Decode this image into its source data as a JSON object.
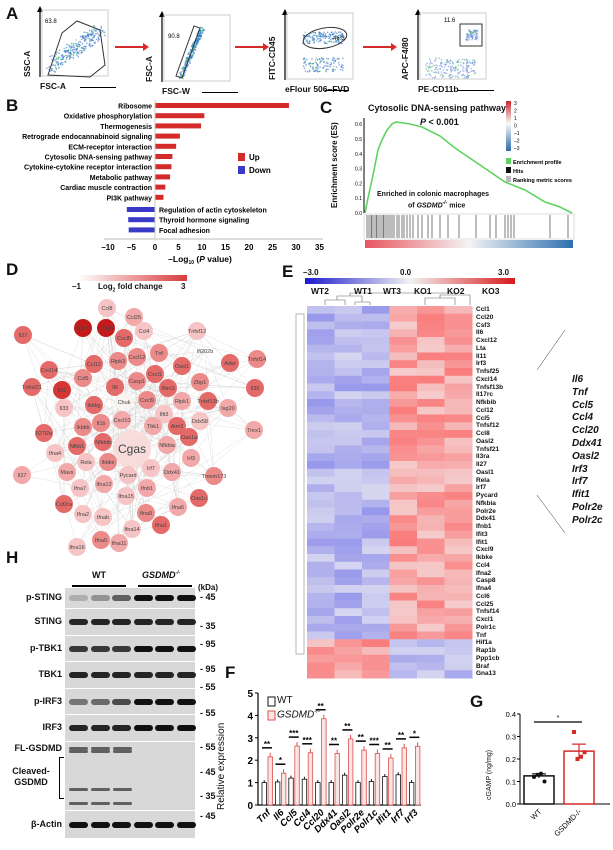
{
  "panels": {
    "A": "A",
    "B": "B",
    "C": "C",
    "D": "D",
    "E": "E",
    "F": "F",
    "G": "G",
    "H": "H"
  },
  "panel_a": {
    "plots": [
      {
        "x_label": "FSC-A",
        "y_label": "SSC-A",
        "gate_pct": "63.8"
      },
      {
        "x_label": "FSC-W",
        "y_label": "FSC-A",
        "gate_pct": "90.8"
      },
      {
        "x_label": "eFlour 506–FVD",
        "y_label": "FITC-CD45",
        "gate_pct": "46.3"
      },
      {
        "x_label": "PE-CD11b",
        "y_label": "APC-F4/80",
        "gate_pct": "11.6"
      }
    ]
  },
  "chart_data": [
    {
      "panel": "B",
      "type": "bar",
      "orientation": "horizontal",
      "categories": [
        "Ribosome",
        "Oxidative phosphorylation",
        "Thermogenesis",
        "Retrograde endocannabinoid signaling",
        "ECM-receptor interaction",
        "Cytosolic DNA-sensing pathway",
        "Cytokine-cytokine receptor interaction",
        "Metabolic pathway",
        "Cardiac muscle contraction",
        "PI3K pathway",
        "Regulation of actin cytoskeleton",
        "Thyroid hormone signaling",
        "Focal adhesion"
      ],
      "values": [
        28.5,
        10.5,
        9.8,
        5.3,
        4.5,
        3.7,
        3.5,
        3.2,
        2.2,
        1.8,
        -6.0,
        -5.7,
        -5.6
      ],
      "direction": [
        "Up",
        "Up",
        "Up",
        "Up",
        "Up",
        "Up",
        "Up",
        "Up",
        "Up",
        "Up",
        "Down",
        "Down",
        "Down"
      ],
      "xlabel_parts": [
        "–Log",
        "10",
        " (",
        "P",
        " value)"
      ],
      "xlim": [
        -10,
        35
      ],
      "xticks": [
        "–10",
        "–5",
        "0",
        "5",
        "10",
        "15",
        "20",
        "25",
        "30",
        "35"
      ],
      "legend": [
        {
          "name": "Up",
          "color": "#d42a2a"
        },
        {
          "name": "Down",
          "color": "#3a3ac8"
        }
      ],
      "legend_position": "right"
    },
    {
      "panel": "C",
      "type": "line",
      "title": "Cytosolic DNA-sensing pathway",
      "p_value_label": "P",
      "p_value_text": " < 0.001",
      "ylabel": "Enrichment score (ES)",
      "yticks": [
        "0.0",
        "0.1",
        "0.2",
        "0.3",
        "0.4",
        "0.5",
        "0.6"
      ],
      "ylim": [
        0,
        0.6
      ],
      "peak_es": 0.61,
      "colorbar_ticks": [
        "3",
        "2",
        "1",
        "0",
        "–1",
        "–2",
        "–3"
      ],
      "legend": [
        {
          "name": "Enrichment profile",
          "color": "#5fd35f"
        },
        {
          "name": "Hits",
          "color": "#111111"
        },
        {
          "name": "Ranking metric scores",
          "color": "#bbbbbb"
        }
      ],
      "annotation_line1": "Enriched in colonic macrophages",
      "annotation_line2_pre": "of ",
      "annotation_line2_gene": "GSDMD",
      "annotation_line2_sup": "-/-",
      "annotation_line2_post": " mice"
    },
    {
      "panel": "F",
      "type": "bar",
      "ylabel": "Relative expression",
      "ylim": [
        0,
        5
      ],
      "yticks": [
        "0",
        "1",
        "2",
        "3",
        "4",
        "5"
      ],
      "categories": [
        "Tnf",
        "Il6",
        "Ccl5",
        "Ccl4",
        "Ccl20",
        "Ddx41",
        "Oasl2",
        "Polr2e",
        "Polr1c",
        "Ifit1",
        "Irf7",
        "Irf3"
      ],
      "series": [
        {
          "name": "WT",
          "values": [
            1.0,
            1.03,
            1.2,
            1.15,
            1.0,
            1.0,
            1.33,
            1.0,
            1.05,
            1.27,
            1.35,
            1.0
          ],
          "color": "#111111"
        },
        {
          "name": "GSDMD-/-",
          "values": [
            2.15,
            1.42,
            2.63,
            2.33,
            3.85,
            2.3,
            2.95,
            2.45,
            2.3,
            2.1,
            2.55,
            2.62
          ],
          "color": "#d9534f"
        }
      ],
      "significance": [
        "**",
        "*",
        "***",
        "***",
        "**",
        "**",
        "**",
        "**",
        "***",
        "**",
        "**",
        "*"
      ],
      "legend_labels": {
        "wt": "WT",
        "ko": "GSDMD",
        "ko_sup": "-/-"
      },
      "legend_position": "top-left"
    },
    {
      "panel": "G",
      "type": "bar",
      "ylabel": "cGAMP (ng/mg)",
      "ylim": [
        0,
        0.4
      ],
      "yticks": [
        "0.0",
        "0.1",
        "0.2",
        "0.3",
        "0.4"
      ],
      "categories": [
        "WT",
        "GSDMD-/-"
      ],
      "values": [
        0.125,
        0.235
      ],
      "points": [
        [
          0.12,
          0.13,
          0.135,
          0.1
        ],
        [
          0.32,
          0.2,
          0.21,
          0.23
        ]
      ],
      "significance": "*",
      "colors": [
        "#111111",
        "#d42a2a"
      ]
    }
  ],
  "panel_d": {
    "legend_min": "–1",
    "legend_max": "3",
    "legend_title": "Log",
    "legend_sub": "2",
    "legend_title2": " fold change",
    "nodes": [
      "Ccl8",
      "Ccl25",
      "Ccl1",
      "Ccl20",
      "Cxcl5",
      "Ccl4",
      "Tnfsf12",
      "Il27",
      "Tnf",
      "Ifi202b",
      "Tnfsf14",
      "Ccl12",
      "Ripk3",
      "Cxcl12",
      "Oasl1",
      "Adar",
      "Cxcl14",
      "Cxcl1",
      "Ccl5",
      "Casp1",
      "Zbp1",
      "Tnfrsf21",
      "Il11",
      "Il6",
      "Ifitm3",
      "Il35",
      "Ikbkg",
      "Chuk",
      "Cxcl9",
      "Ripk1",
      "Tnfsf13b",
      "Isg20",
      "Il33",
      "Ifit3",
      "Il1b",
      "Cxcl10",
      "Tbk1",
      "Aim2",
      "Ddx58",
      "Trex1",
      "Il27l2a",
      "Ikbkb",
      "Nfkbib",
      "Nfkb1",
      "Cgas",
      "Nfkbia",
      "Oas1a",
      "Ifna4",
      "Irf3",
      "Rela",
      "Ikbke",
      "Il27",
      "Mavs",
      "Irf7",
      "Pycard",
      "Ddx41",
      "Tmem173",
      "Ifna7",
      "Ifna12",
      "Ifnb1",
      "Ifna15",
      "Oas1c",
      "Csf2ra",
      "Ifna6",
      "Ifna2",
      "Ifnab",
      "Ifna9",
      "Ifna1",
      "Ifna14",
      "Ifna5",
      "Ifna11",
      "Ifna16"
    ]
  },
  "panel_e": {
    "scale_min": "–3.0",
    "scale_mid": "0.0",
    "scale_max": "3.0",
    "samples": [
      "WT2",
      "WT1",
      "WT3",
      "KO1",
      "KO2",
      "KO3"
    ],
    "genes": [
      "Ccl1",
      "Ccl20",
      "Csf3",
      "Il6",
      "Cxcl12",
      "Lta",
      "Il11",
      "Irf3",
      "Tnfsf25",
      "Cxcl14",
      "Tnfsf13b",
      "Il17rc",
      "Nfkbib",
      "Ccl12",
      "Ccl5",
      "Tnfsf12",
      "Ccl8",
      "Oasl2",
      "Tnfsf21",
      "Il3ra",
      "Il27",
      "Oasl1",
      "Rela",
      "Irf7",
      "Pycard",
      "Nfkbia",
      "Polr2e",
      "Ddx41",
      "Ifnb1",
      "Ifit3",
      "Ifit1",
      "Cxcl9",
      "Ikbke",
      "Ccl4",
      "Ifna2",
      "Casp8",
      "Ifna4",
      "Ccl6",
      "Ccl25",
      "Tnfsf14",
      "Cxcl1",
      "Polr1c",
      "Tnf",
      "Hif1a",
      "Rap1b",
      "Ppp1cb",
      "Braf",
      "Gna13"
    ],
    "highlight": [
      "Il6",
      "Tnf",
      "Ccl5",
      "Ccl4",
      "Ccl20",
      "Ddx41",
      "Oasl2",
      "Irf3",
      "Irf7",
      "Ifit1",
      "Polr2e",
      "Polr2c"
    ]
  },
  "panel_h": {
    "group_wt": "WT",
    "group_ko": "GSDMD",
    "group_ko_sup": "-/-",
    "kda_label": "(kDa)",
    "blots": [
      "p-STING",
      "STING",
      "p-TBK1",
      "TBK1",
      "p-IRF3",
      "IRF3",
      "FL-GSDMD",
      "Cleaved-\nGSDMD",
      "β-Actin"
    ],
    "cleaved_label_line1": "Cleaved-",
    "cleaved_label_line2": "GSDMD",
    "markers": [
      "45",
      "35",
      "95",
      "95",
      "55",
      "55",
      "55",
      "45",
      "35",
      "45"
    ]
  }
}
